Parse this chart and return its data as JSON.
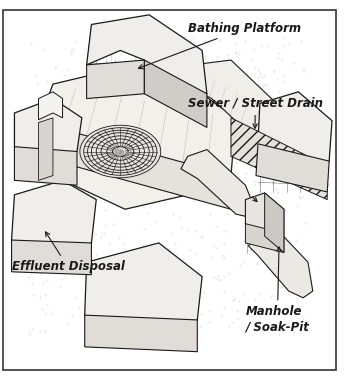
{
  "bg_color": "#f5f3f0",
  "line_color": "#1a1a1a",
  "labels": {
    "bathing_platform": "Bathing Platform",
    "sewer": "Sewer / Street Drain",
    "effluent": "Effluent Disposal",
    "manhole": "Manhole\n/ Soak-Pit"
  },
  "figsize": [
    3.52,
    3.8
  ],
  "dpi": 100,
  "dots_color": "#aaaaaa",
  "hatch_color": "#555555"
}
